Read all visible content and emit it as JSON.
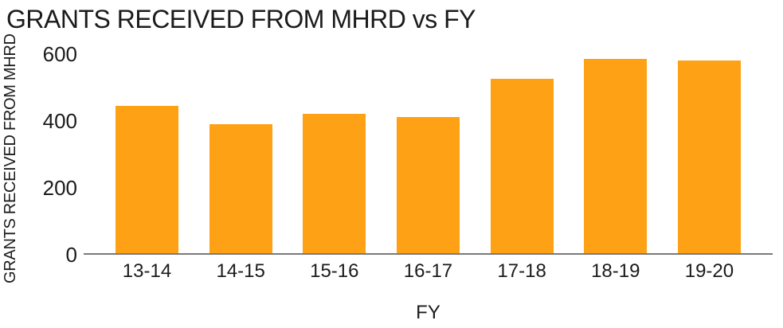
{
  "chart_data": {
    "type": "bar",
    "title": "GRANTS RECEIVED FROM MHRD vs FY",
    "xlabel": "FY",
    "ylabel": "GRANTS RECEIVED FROM MHRD",
    "categories": [
      "13-14",
      "14-15",
      "15-16",
      "16-17",
      "17-18",
      "18-19",
      "19-20"
    ],
    "values": [
      445,
      390,
      420,
      410,
      525,
      585,
      580
    ],
    "ylim": [
      0,
      600
    ],
    "yticks": [
      0,
      200,
      400,
      600
    ],
    "bar_color": "#FFA114",
    "axis_line_color": "#7a7a7a",
    "text_color": "#1b1b1b",
    "grid": false,
    "legend": false
  }
}
